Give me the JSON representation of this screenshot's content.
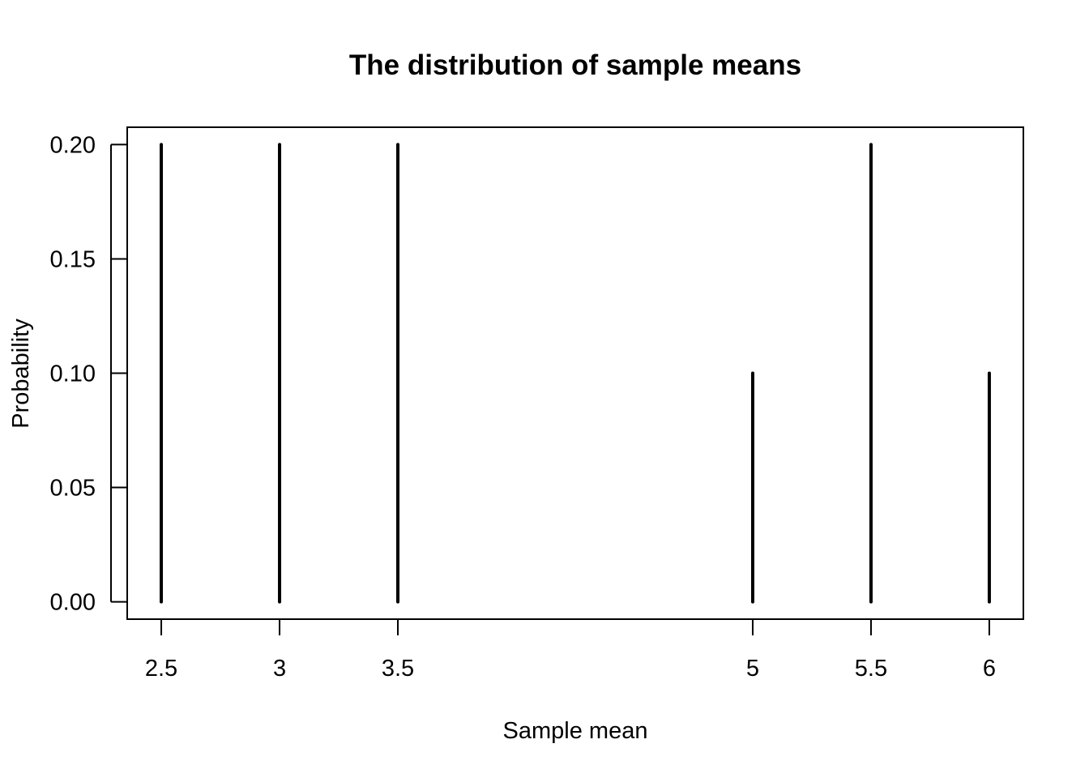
{
  "chart_data": {
    "type": "bar",
    "title": "The distribution of sample means",
    "xlabel": "Sample mean",
    "ylabel": "Probability",
    "x": [
      2.5,
      3,
      3.5,
      5,
      5.5,
      6
    ],
    "x_tick_labels": [
      "2.5",
      "3",
      "3.5",
      "5",
      "5.5",
      "6"
    ],
    "values": [
      0.2,
      0.2,
      0.2,
      0.1,
      0.2,
      0.1
    ],
    "y_ticks": [
      0,
      0.05,
      0.1,
      0.15,
      0.2
    ],
    "y_tick_labels": [
      "0.00",
      "0.05",
      "0.10",
      "0.15",
      "0.20"
    ],
    "xlim": [
      2.356,
      6.144
    ],
    "ylim": [
      -0.0076,
      0.2076
    ],
    "grid": false,
    "legend": "none",
    "colors": {
      "line": "#000000",
      "frame": "#000000",
      "background": "#ffffff"
    }
  }
}
